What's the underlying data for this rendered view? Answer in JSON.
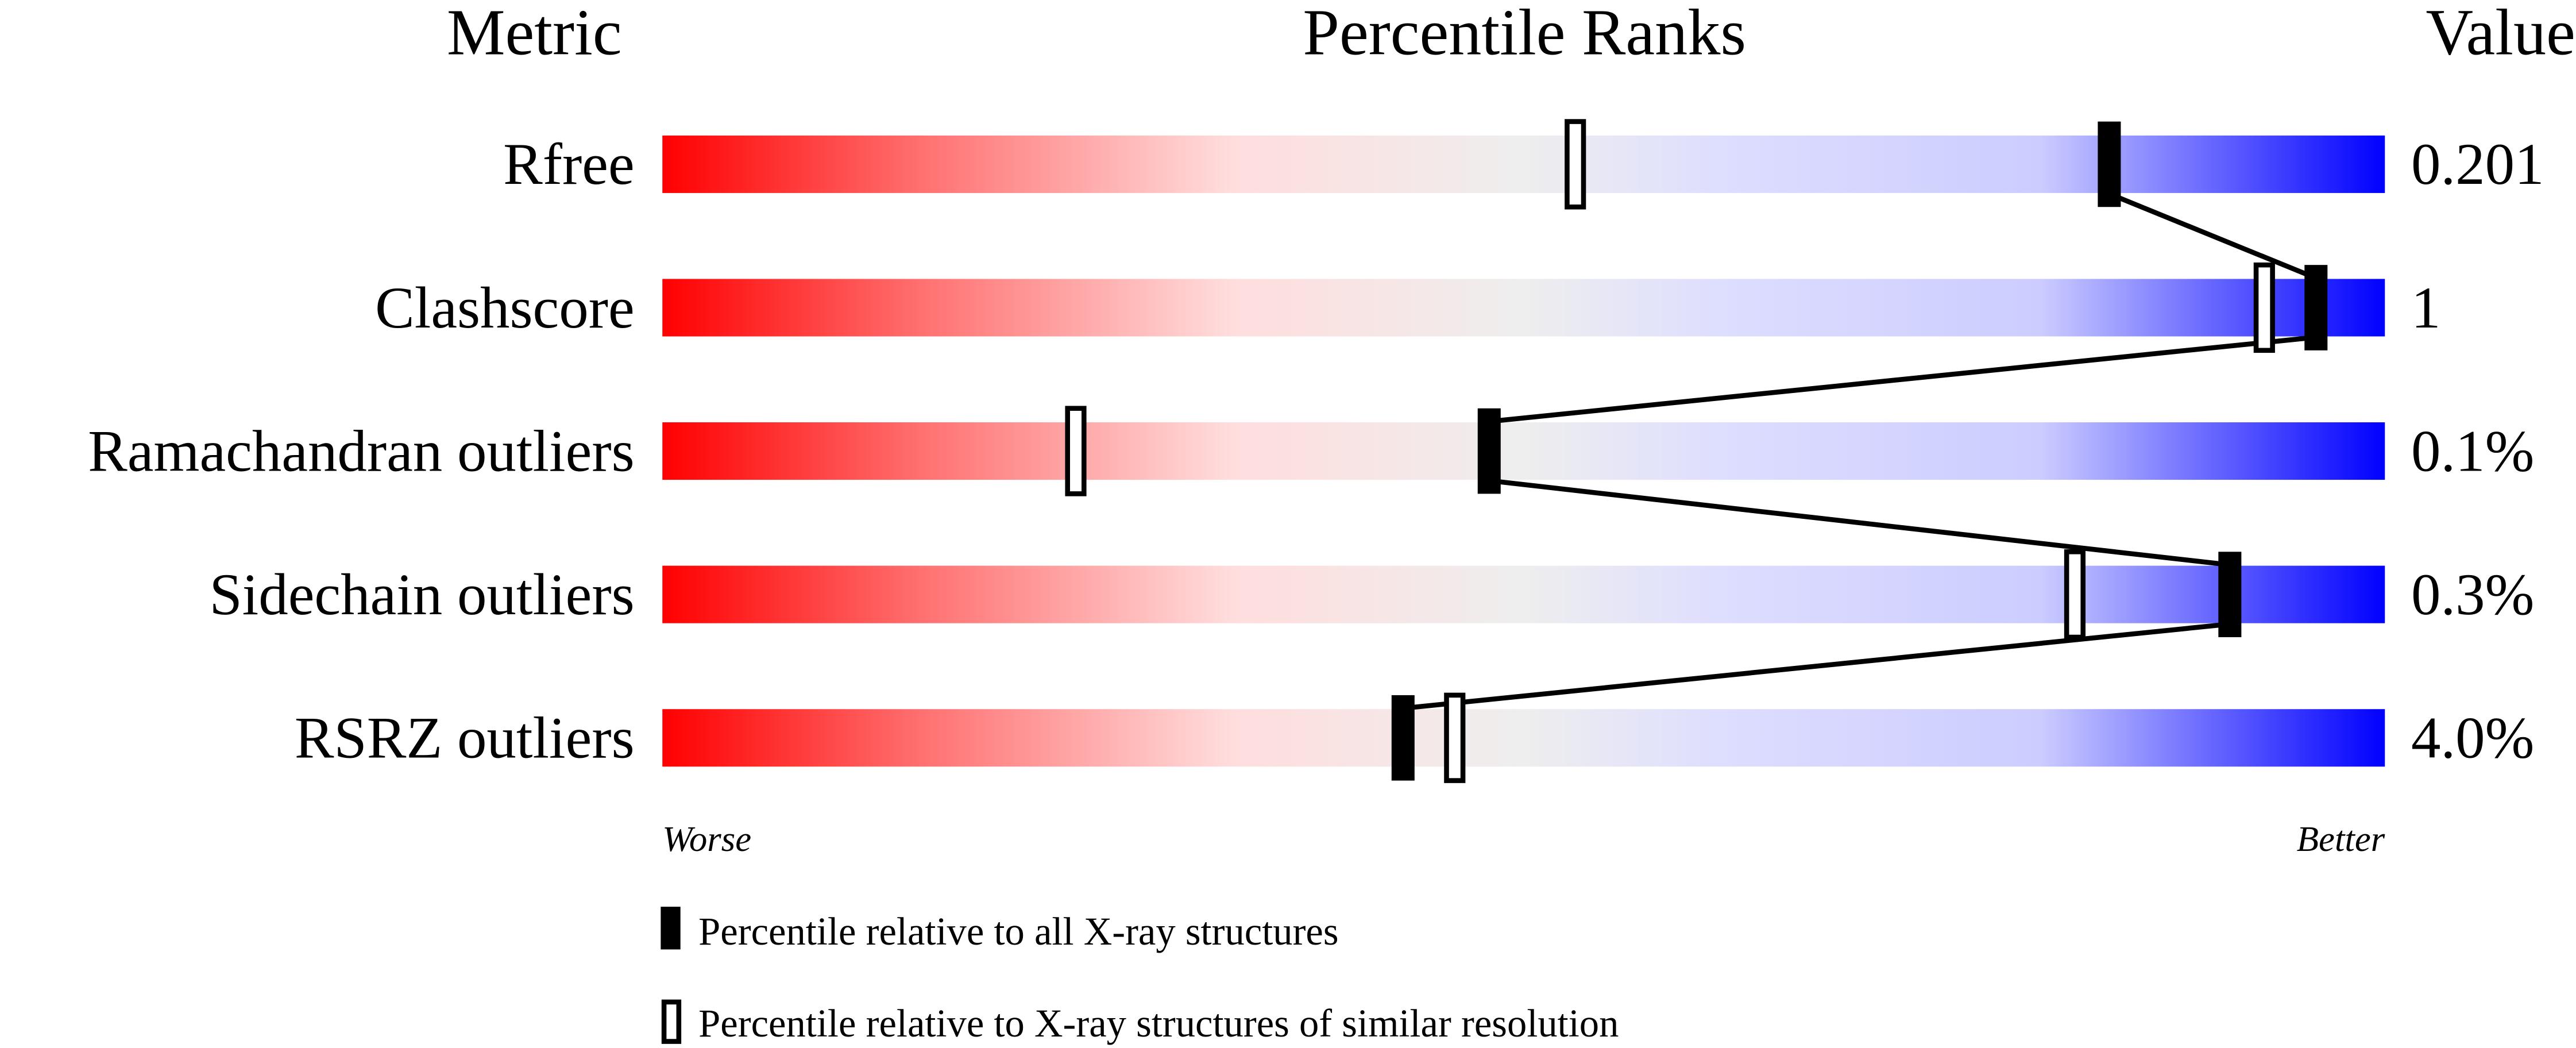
{
  "chart_data": {
    "type": "percentile-slider",
    "headers": {
      "metric": "Metric",
      "ranks": "Percentile Ranks",
      "value": "Value"
    },
    "xlim": [
      0,
      100
    ],
    "axis_labels": {
      "left": "Worse",
      "right": "Better"
    },
    "metrics": [
      {
        "name": "Rfree",
        "value": "0.201",
        "percentile_all": 84,
        "percentile_similar": 53
      },
      {
        "name": "Clashscore",
        "value": "1",
        "percentile_all": 96,
        "percentile_similar": 93
      },
      {
        "name": "Ramachandran outliers",
        "value": "0.1%",
        "percentile_all": 48,
        "percentile_similar": 24
      },
      {
        "name": "Sidechain outliers",
        "value": "0.3%",
        "percentile_all": 91,
        "percentile_similar": 82
      },
      {
        "name": "RSRZ outliers",
        "value": "4.0%",
        "percentile_all": 43,
        "percentile_similar": 46
      }
    ],
    "legend": {
      "all": "Percentile relative to all X-ray structures",
      "similar": "Percentile relative to X-ray structures of similar resolution"
    },
    "colors": {
      "worse": "#ff0000",
      "middle": "#eeeeee",
      "better": "#0000ff"
    }
  }
}
